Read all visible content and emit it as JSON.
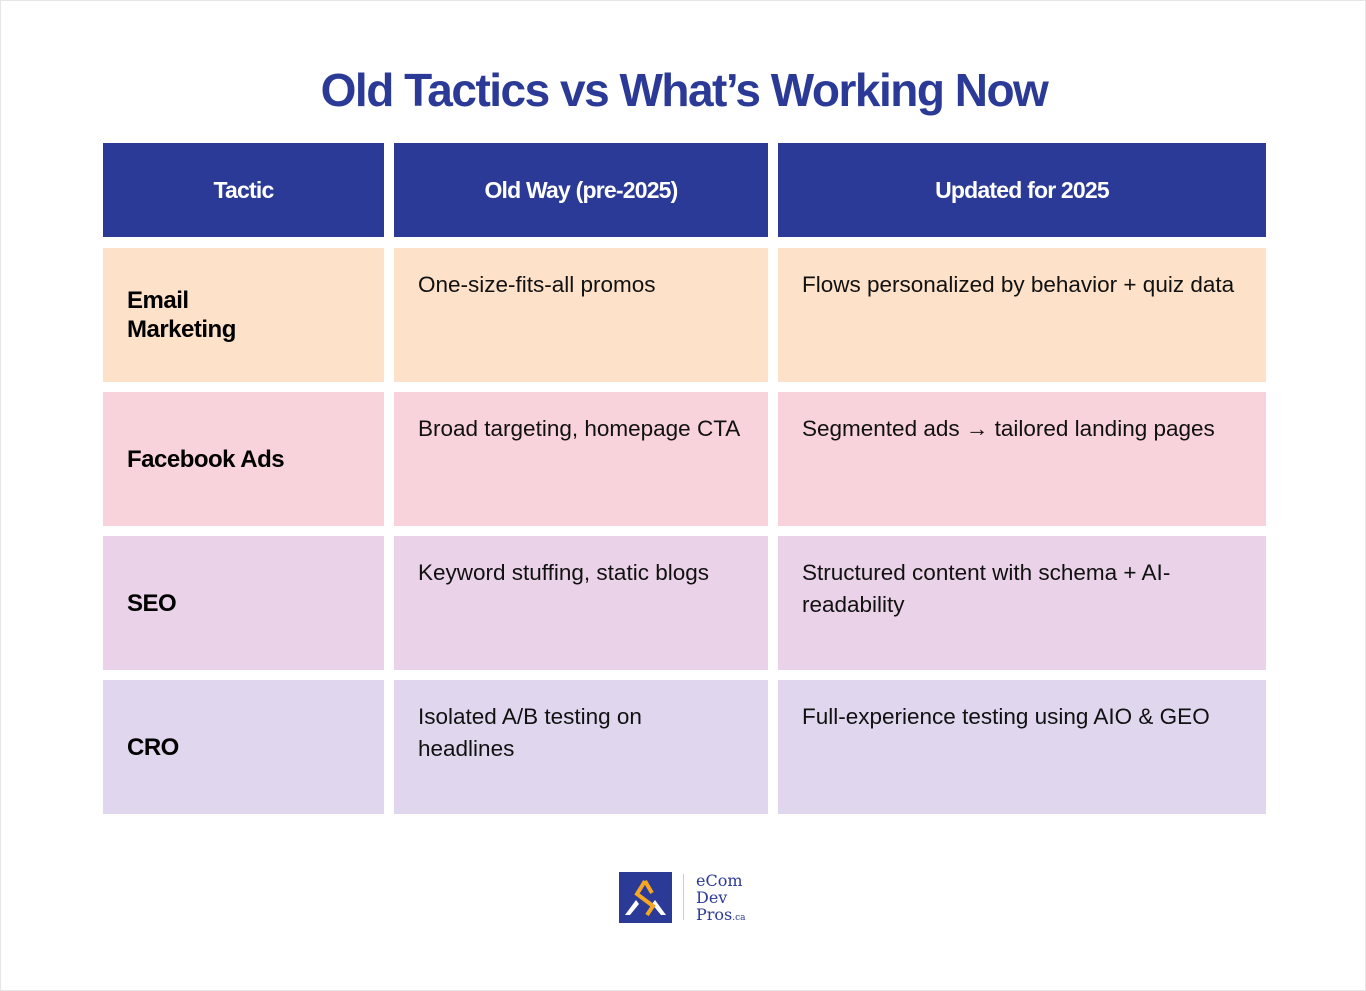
{
  "title": "Old Tactics vs What’s Working Now",
  "headers": [
    "Tactic",
    "Old Way (pre-2025)",
    "Updated for 2025"
  ],
  "rows": [
    {
      "tactic": "Email Marketing",
      "old": "One-size-fits-all promos",
      "new": "Flows personalized by behavior + quiz data",
      "color": "#fde1c8"
    },
    {
      "tactic": "Facebook Ads",
      "old": "Broad targeting, homepage CTA",
      "new": "Segmented ads → tailored landing pages",
      "color": "#f8d3dc"
    },
    {
      "tactic": "SEO",
      "old": "Keyword stuffing, static blogs",
      "new": "Structured content with schema + AI-readability",
      "color": "#ead3e8"
    },
    {
      "tactic": "CRO",
      "old": "Isolated A/B testing on headlines",
      "new": "Full-experience testing using AIO & GEO",
      "color": "#e0d6ee"
    }
  ],
  "colors": {
    "header": "#2b3a97",
    "logo_accent": "#f5a623"
  },
  "logo": {
    "line1": "eCom",
    "line2": "Dev",
    "line3": "Pros",
    "suffix": ".ca"
  }
}
